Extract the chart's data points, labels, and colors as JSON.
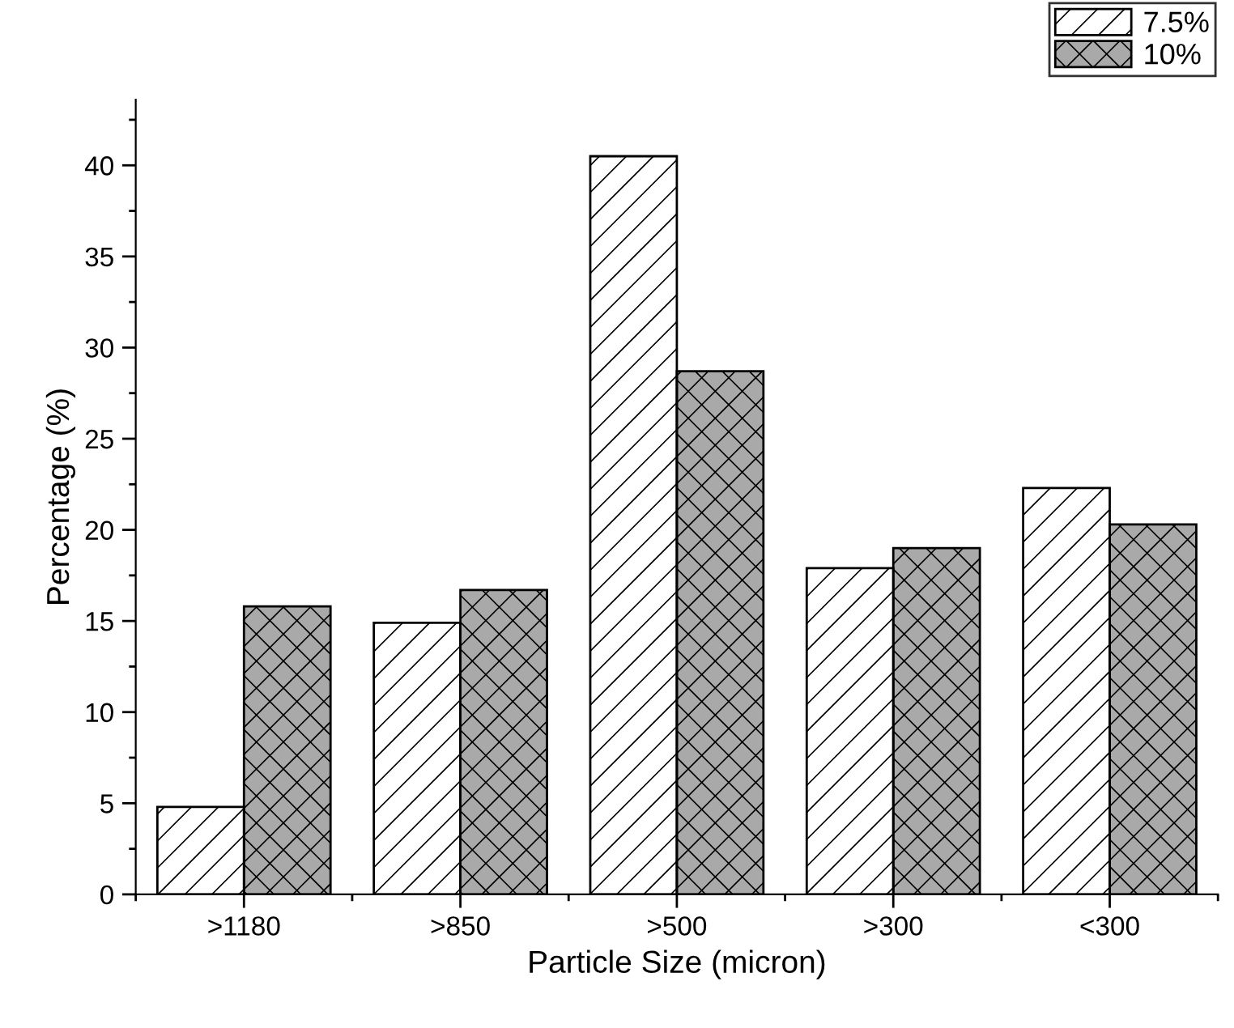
{
  "chart_data": {
    "type": "bar",
    "xlabel": "Particle Size (micron)",
    "ylabel": "Percentage (%)",
    "categories": [
      ">1180",
      ">850",
      ">500",
      ">300",
      "<300"
    ],
    "series": [
      {
        "name": "7.5%",
        "color": "#ffffff",
        "values": [
          4.8,
          14.9,
          40.5,
          17.9,
          22.3
        ]
      },
      {
        "name": "10%",
        "color": "#a9a9a9",
        "values": [
          15.8,
          16.7,
          28.7,
          19.0,
          20.3
        ]
      }
    ],
    "ylim": [
      0,
      43.6
    ],
    "yticks": [
      0,
      5,
      10,
      15,
      20,
      25,
      30,
      35,
      40
    ],
    "grid": false,
    "legend": "top right"
  }
}
